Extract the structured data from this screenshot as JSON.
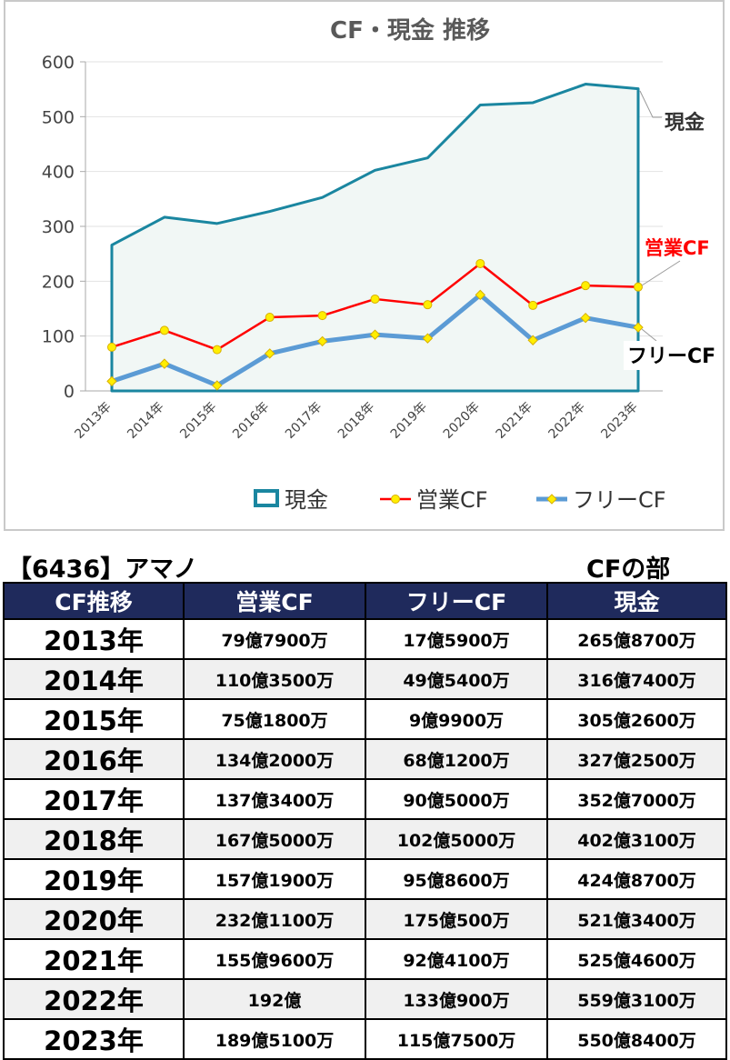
{
  "chart_data": {
    "type": "line",
    "title": "CF・現金 推移",
    "categories": [
      "2013年",
      "2014年",
      "2015年",
      "2016年",
      "2017年",
      "2018年",
      "2019年",
      "2020年",
      "2021年",
      "2022年",
      "2023年"
    ],
    "ylim": [
      0,
      600
    ],
    "yticks": [
      0,
      100,
      200,
      300,
      400,
      500,
      600
    ],
    "grid": true,
    "legend_position": "bottom",
    "series": [
      {
        "name": "現金",
        "kind": "area",
        "color": "#1a86a0",
        "fill": "#f1f7f5",
        "values": [
          265.87,
          316.74,
          305.26,
          327.25,
          352.7,
          402.31,
          424.87,
          521.34,
          525.46,
          559.31,
          550.84
        ],
        "end_label": "現金",
        "end_label_color": "#333333"
      },
      {
        "name": "営業CF",
        "kind": "line",
        "color": "#ff0000",
        "marker": "circle",
        "marker_color": "#ffee00",
        "values": [
          79.79,
          110.35,
          75.18,
          134.2,
          137.34,
          167.5,
          157.19,
          232.11,
          155.96,
          192,
          189.51
        ],
        "end_label": "営業CF",
        "end_label_color": "#ff0000"
      },
      {
        "name": "フリーCF",
        "kind": "line",
        "color": "#5b9bd5",
        "marker": "diamond",
        "marker_color": "#ffee00",
        "values": [
          17.59,
          49.54,
          9.99,
          68.12,
          90.5,
          102.5,
          95.86,
          175.05,
          92.41,
          133.09,
          115.75
        ],
        "end_label": "フリーCF",
        "end_label_color": "#000000"
      }
    ]
  },
  "company_title": "【6436】アマノ",
  "section_label": "CFの部",
  "table": {
    "headers": [
      "CF推移",
      "営業CF",
      "フリーCF",
      "現金"
    ],
    "rows": [
      [
        "2013年",
        "79億7900万",
        "17億5900万",
        "265億8700万"
      ],
      [
        "2014年",
        "110億3500万",
        "49億5400万",
        "316億7400万"
      ],
      [
        "2015年",
        "75億1800万",
        "9億9900万",
        "305億2600万"
      ],
      [
        "2016年",
        "134億2000万",
        "68億1200万",
        "327億2500万"
      ],
      [
        "2017年",
        "137億3400万",
        "90億5000万",
        "352億7000万"
      ],
      [
        "2018年",
        "167億5000万",
        "102億5000万",
        "402億3100万"
      ],
      [
        "2019年",
        "157億1900万",
        "95億8600万",
        "424億8700万"
      ],
      [
        "2020年",
        "232億1100万",
        "175億500万",
        "521億3400万"
      ],
      [
        "2021年",
        "155億9600万",
        "92億4100万",
        "525億4600万"
      ],
      [
        "2022年",
        "192億",
        "133億900万",
        "559億3100万"
      ],
      [
        "2023年",
        "189億5100万",
        "115億7500万",
        "550億8400万"
      ]
    ]
  }
}
